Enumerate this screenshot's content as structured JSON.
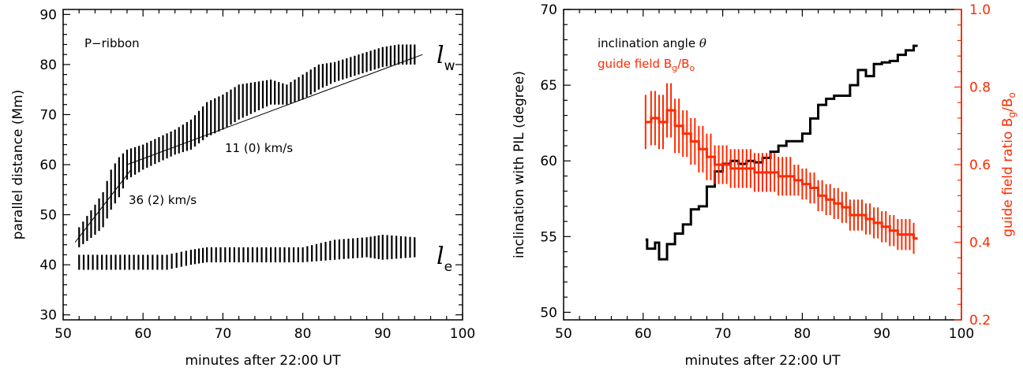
{
  "chart_data": [
    {
      "type": "line",
      "xlabel": "minutes after 22:00 UT",
      "ylabel": "parallel distance (Mm)",
      "xlim": [
        50,
        100
      ],
      "ylim": [
        29,
        91
      ],
      "xticks": [
        50,
        60,
        70,
        80,
        90,
        100
      ],
      "yticks": [
        30,
        40,
        50,
        60,
        70,
        80,
        90
      ],
      "annotations": {
        "ribbon": "P−ribbon",
        "fit_late": "11 (0) km/s",
        "fit_early": "36 (2) km/s",
        "lw_main": "l",
        "lw_sub": "w",
        "le_main": "l",
        "le_sub": "e"
      },
      "series": [
        {
          "style": "errorbar",
          "points": [
            [
              52,
              45.5,
              2.0
            ],
            [
              54,
              49,
              3.0
            ],
            [
              55,
              51,
              3.5
            ],
            [
              56,
              55,
              4.0
            ],
            [
              57,
              57.5,
              4.0
            ],
            [
              58,
              60,
              3.0
            ],
            [
              60,
              61.5,
              2.5
            ],
            [
              62,
              63,
              2.5
            ],
            [
              64,
              64.5,
              2.5
            ],
            [
              66,
              66,
              3.0
            ],
            [
              68,
              69,
              3.5
            ],
            [
              70,
              70.5,
              3.5
            ],
            [
              72,
              72.5,
              3.5
            ],
            [
              74,
              73.5,
              3.0
            ],
            [
              76,
              74.5,
              2.5
            ],
            [
              78,
              74,
              2.0
            ],
            [
              80,
              75.5,
              2.5
            ],
            [
              82,
              77.5,
              2.5
            ],
            [
              84,
              78.5,
              2.0
            ],
            [
              86,
              79.5,
              2.0
            ],
            [
              88,
              80.5,
              2.0
            ],
            [
              90,
              81.5,
              2.0
            ],
            [
              92,
              82,
              2.0
            ],
            [
              94,
              82,
              2.0
            ]
          ]
        },
        {
          "style": "errorbar",
          "points": [
            [
              52,
              40.5,
              1.5
            ],
            [
              56,
              40.5,
              1.5
            ],
            [
              60,
              40.5,
              1.5
            ],
            [
              63,
              40.5,
              1.5
            ],
            [
              66,
              41.5,
              1.5
            ],
            [
              68,
              42,
              1.5
            ],
            [
              72,
              42,
              1.5
            ],
            [
              76,
              42,
              1.5
            ],
            [
              80,
              42,
              1.5
            ],
            [
              84,
              43,
              2.0
            ],
            [
              88,
              43.5,
              2.0
            ],
            [
              90,
              43.5,
              2.5
            ],
            [
              94,
              43.5,
              2.0
            ]
          ]
        },
        {
          "style": "fit",
          "points": [
            [
              51.5,
              44.5
            ],
            [
              58.5,
              59
            ]
          ]
        },
        {
          "style": "fit",
          "points": [
            [
              58,
              60
            ],
            [
              95,
              82
            ]
          ]
        }
      ]
    },
    {
      "type": "line",
      "xlabel": "minutes after 22:00 UT",
      "ylabel": "inclination with PIL (degree)",
      "y2label": "guide field ratio B",
      "y2label_sub1": "g",
      "y2label_mid": "/B",
      "y2label_sub2": "o",
      "xlim": [
        50,
        100
      ],
      "ylim": [
        49.5,
        70
      ],
      "y2lim": [
        0.2,
        1.0
      ],
      "xticks": [
        50,
        60,
        70,
        80,
        90,
        100
      ],
      "yticks": [
        50,
        55,
        60,
        65,
        70
      ],
      "y2ticks": [
        0.2,
        0.4,
        0.6,
        0.8,
        1.0
      ],
      "y2ticklabels": [
        "0.2",
        "0.4",
        "0.6",
        "0.8",
        "1.0"
      ],
      "colors": {
        "inclination": "#000000",
        "guide": "#ff2a00"
      },
      "legend": {
        "placement": "top-left",
        "entries": [
          {
            "text": "inclination angle ",
            "symbol": "θ"
          },
          {
            "text": "guide field B",
            "sub1": "g",
            "mid": "/B",
            "sub2": "o"
          }
        ]
      },
      "series": [
        {
          "axis": "left",
          "style": "step",
          "color": "#000000",
          "points": [
            [
              60.3,
              54.8
            ],
            [
              60.5,
              54.2
            ],
            [
              61.5,
              54.6
            ],
            [
              62,
              53.5
            ],
            [
              63,
              54.5
            ],
            [
              64,
              55.2
            ],
            [
              65,
              55.8
            ],
            [
              66,
              56.8
            ],
            [
              67,
              57.0
            ],
            [
              68,
              58.3
            ],
            [
              69,
              59.3
            ],
            [
              70,
              59.8
            ],
            [
              71,
              60.0
            ],
            [
              72,
              59.8
            ],
            [
              73,
              60.0
            ],
            [
              74,
              59.9
            ],
            [
              75,
              60.2
            ],
            [
              76,
              60.6
            ],
            [
              77,
              61.0
            ],
            [
              78,
              61.3
            ],
            [
              79,
              61.3
            ],
            [
              80,
              61.8
            ],
            [
              81,
              62.8
            ],
            [
              82,
              63.7
            ],
            [
              83,
              64.1
            ],
            [
              84,
              64.3
            ],
            [
              86,
              65.0
            ],
            [
              87,
              66.0
            ],
            [
              88,
              65.6
            ],
            [
              89,
              66.4
            ],
            [
              90,
              66.5
            ],
            [
              91,
              66.6
            ],
            [
              92,
              67.0
            ],
            [
              93,
              67.3
            ],
            [
              94,
              67.6
            ],
            [
              94.5,
              67.6
            ]
          ]
        },
        {
          "axis": "right",
          "style": "step-errorbar",
          "color": "#ff2a00",
          "points": [
            [
              60.3,
              0.71,
              0.07
            ],
            [
              61,
              0.72,
              0.07
            ],
            [
              62,
              0.71,
              0.07
            ],
            [
              63,
              0.74,
              0.07
            ],
            [
              64,
              0.7,
              0.07
            ],
            [
              65,
              0.68,
              0.06
            ],
            [
              66,
              0.66,
              0.06
            ],
            [
              67,
              0.64,
              0.06
            ],
            [
              68,
              0.62,
              0.06
            ],
            [
              69,
              0.6,
              0.05
            ],
            [
              70,
              0.6,
              0.05
            ],
            [
              71,
              0.59,
              0.05
            ],
            [
              72,
              0.59,
              0.05
            ],
            [
              73,
              0.59,
              0.05
            ],
            [
              74,
              0.58,
              0.05
            ],
            [
              75,
              0.58,
              0.05
            ],
            [
              76,
              0.58,
              0.05
            ],
            [
              77,
              0.57,
              0.05
            ],
            [
              78,
              0.57,
              0.05
            ],
            [
              79,
              0.56,
              0.04
            ],
            [
              80,
              0.55,
              0.04
            ],
            [
              81,
              0.54,
              0.04
            ],
            [
              82,
              0.52,
              0.04
            ],
            [
              83,
              0.51,
              0.04
            ],
            [
              84,
              0.5,
              0.04
            ],
            [
              85,
              0.49,
              0.04
            ],
            [
              86,
              0.47,
              0.04
            ],
            [
              87,
              0.47,
              0.04
            ],
            [
              88,
              0.46,
              0.04
            ],
            [
              89,
              0.45,
              0.04
            ],
            [
              90,
              0.44,
              0.04
            ],
            [
              91,
              0.43,
              0.04
            ],
            [
              92,
              0.42,
              0.04
            ],
            [
              93,
              0.42,
              0.04
            ],
            [
              94,
              0.41,
              0.04
            ],
            [
              94.5,
              0.41,
              0.04
            ]
          ]
        }
      ]
    }
  ]
}
